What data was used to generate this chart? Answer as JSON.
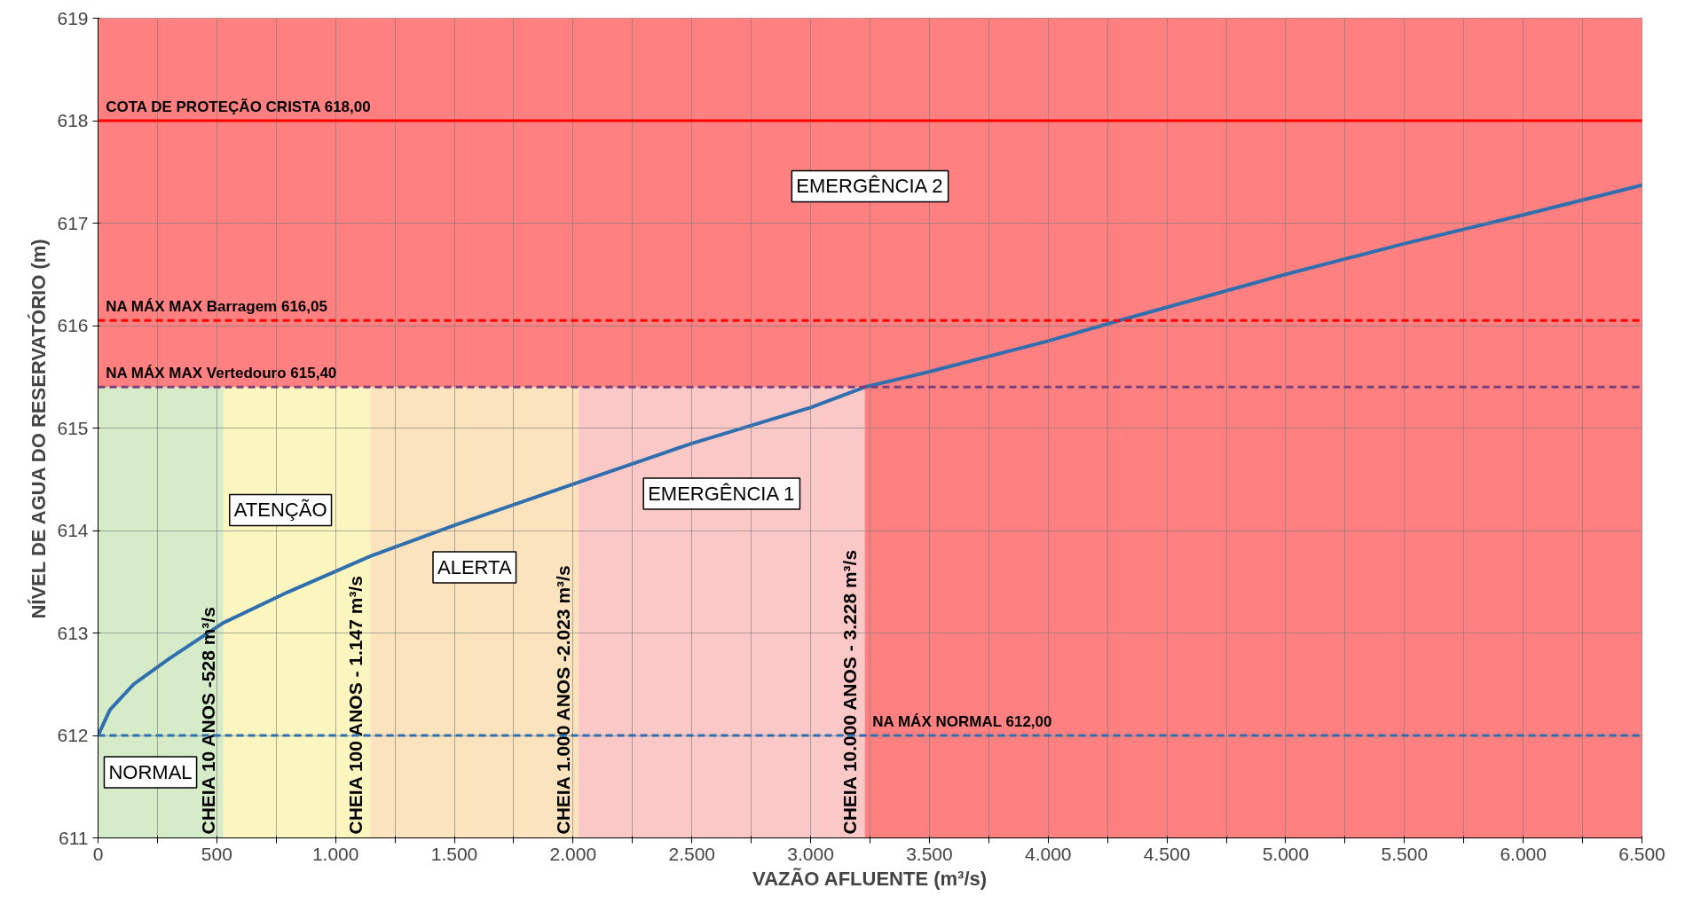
{
  "chart_data": {
    "type": "line",
    "xlabel": "VAZÃO AFLUENTE (m³/s)",
    "ylabel": "NÍVEL DE AGUA DO RESERVATÓRIO (m)",
    "series": [
      {
        "color": "#2f6fb0",
        "x": [
          0,
          50,
          150,
          300,
          528,
          800,
          1147,
          1500,
          2023,
          2500,
          3000,
          3228,
          3500,
          4000,
          4300,
          5000,
          5500,
          6000,
          6500
        ],
        "values": [
          612.0,
          612.25,
          612.5,
          612.75,
          613.1,
          613.4,
          613.75,
          614.05,
          614.47,
          614.85,
          615.2,
          615.4,
          615.55,
          615.85,
          616.05,
          616.5,
          616.8,
          617.08,
          617.37
        ]
      }
    ],
    "xlim": [
      0,
      6500
    ],
    "ylim": [
      611,
      619
    ],
    "xticks": [
      0,
      {
        "value": 250,
        "label": null
      },
      500,
      {
        "value": 750,
        "label": null
      },
      {
        "value": 1000,
        "label": "1.000"
      },
      {
        "value": 1250,
        "label": null
      },
      {
        "value": 1500,
        "label": "1.500"
      },
      {
        "value": 1750,
        "label": null
      },
      {
        "value": 2000,
        "label": "2.000"
      },
      {
        "value": 2250,
        "label": null
      },
      {
        "value": 2500,
        "label": "2.500"
      },
      {
        "value": 2750,
        "label": null
      },
      {
        "value": 3000,
        "label": "3.000"
      },
      {
        "value": 3250,
        "label": null
      },
      {
        "value": 3500,
        "label": "3.500"
      },
      {
        "value": 3750,
        "label": null
      },
      {
        "value": 4000,
        "label": "4.000"
      },
      {
        "value": 4250,
        "label": null
      },
      {
        "value": 4500,
        "label": "4.500"
      },
      {
        "value": 4750,
        "label": null
      },
      {
        "value": 5000,
        "label": "5.000"
      },
      {
        "value": 5250,
        "label": null
      },
      {
        "value": 5500,
        "label": "5.500"
      },
      {
        "value": 5750,
        "label": null
      },
      {
        "value": 6000,
        "label": "6.000"
      },
      {
        "value": 6250,
        "label": null
      },
      {
        "value": 6500,
        "label": "6.500"
      }
    ],
    "yticks": [
      611,
      612,
      613,
      614,
      615,
      616,
      617,
      618,
      619
    ],
    "grid": true,
    "marker": "none",
    "line_style": "solid",
    "bands": [
      {
        "axis": "x",
        "from": 0,
        "to": 528,
        "label": "NORMAL",
        "color": "#d6ecc9"
      },
      {
        "axis": "x",
        "from": 528,
        "to": 1147,
        "label": "ATENÇÃO",
        "color": "#fbf6bf"
      },
      {
        "axis": "x",
        "from": 1147,
        "to": 2023,
        "label": "ALERTA",
        "color": "#fbe3bd"
      },
      {
        "axis": "x",
        "from": 2023,
        "to": 3228,
        "label": "EMERGÊNCIA 1",
        "color": "#fbc8c8"
      },
      {
        "axis": "x",
        "from": 3228,
        "to": 6500,
        "color": "#ff8080"
      },
      {
        "axis": "y",
        "from": 615.4,
        "to": 619,
        "label": "EMERGÊNCIA 2",
        "color": "#ff8080"
      }
    ],
    "ref_lines": [
      {
        "axis": "y",
        "value": 618,
        "label": "COTA DE PROTEÇÃO CRISTA 618,00",
        "color": "#ff0000",
        "line_style": "solid"
      },
      {
        "axis": "y",
        "value": 616.05,
        "label": "NA MÁX MAX Barragem 616,05",
        "color": "#ff0000",
        "line_style": "dashed"
      },
      {
        "axis": "y",
        "value": 615.4,
        "label": "NA MÁX MAX Vertedouro 615,40",
        "color": "#7b3f7a",
        "line_style": "dashed"
      },
      {
        "axis": "y",
        "value": 612,
        "label": "NA MÁX NORMAL 612,00",
        "color": "#2f6fb0",
        "line_style": "dashed"
      }
    ],
    "annotations": [
      {
        "text": "CHEIA 10 ANOS -528 m³/s",
        "x": 528,
        "y": 611
      },
      {
        "text": "CHEIA 100 ANOS - 1.147 m³/s",
        "x": 1147,
        "y": 611
      },
      {
        "text": "CHEIA 1.000 ANOS -2.023 m³/s",
        "x": 2023,
        "y": 611
      },
      {
        "text": "CHEIA 10.000 ANOS - 3.228 m³/s",
        "x": 3228,
        "y": 611
      }
    ]
  }
}
